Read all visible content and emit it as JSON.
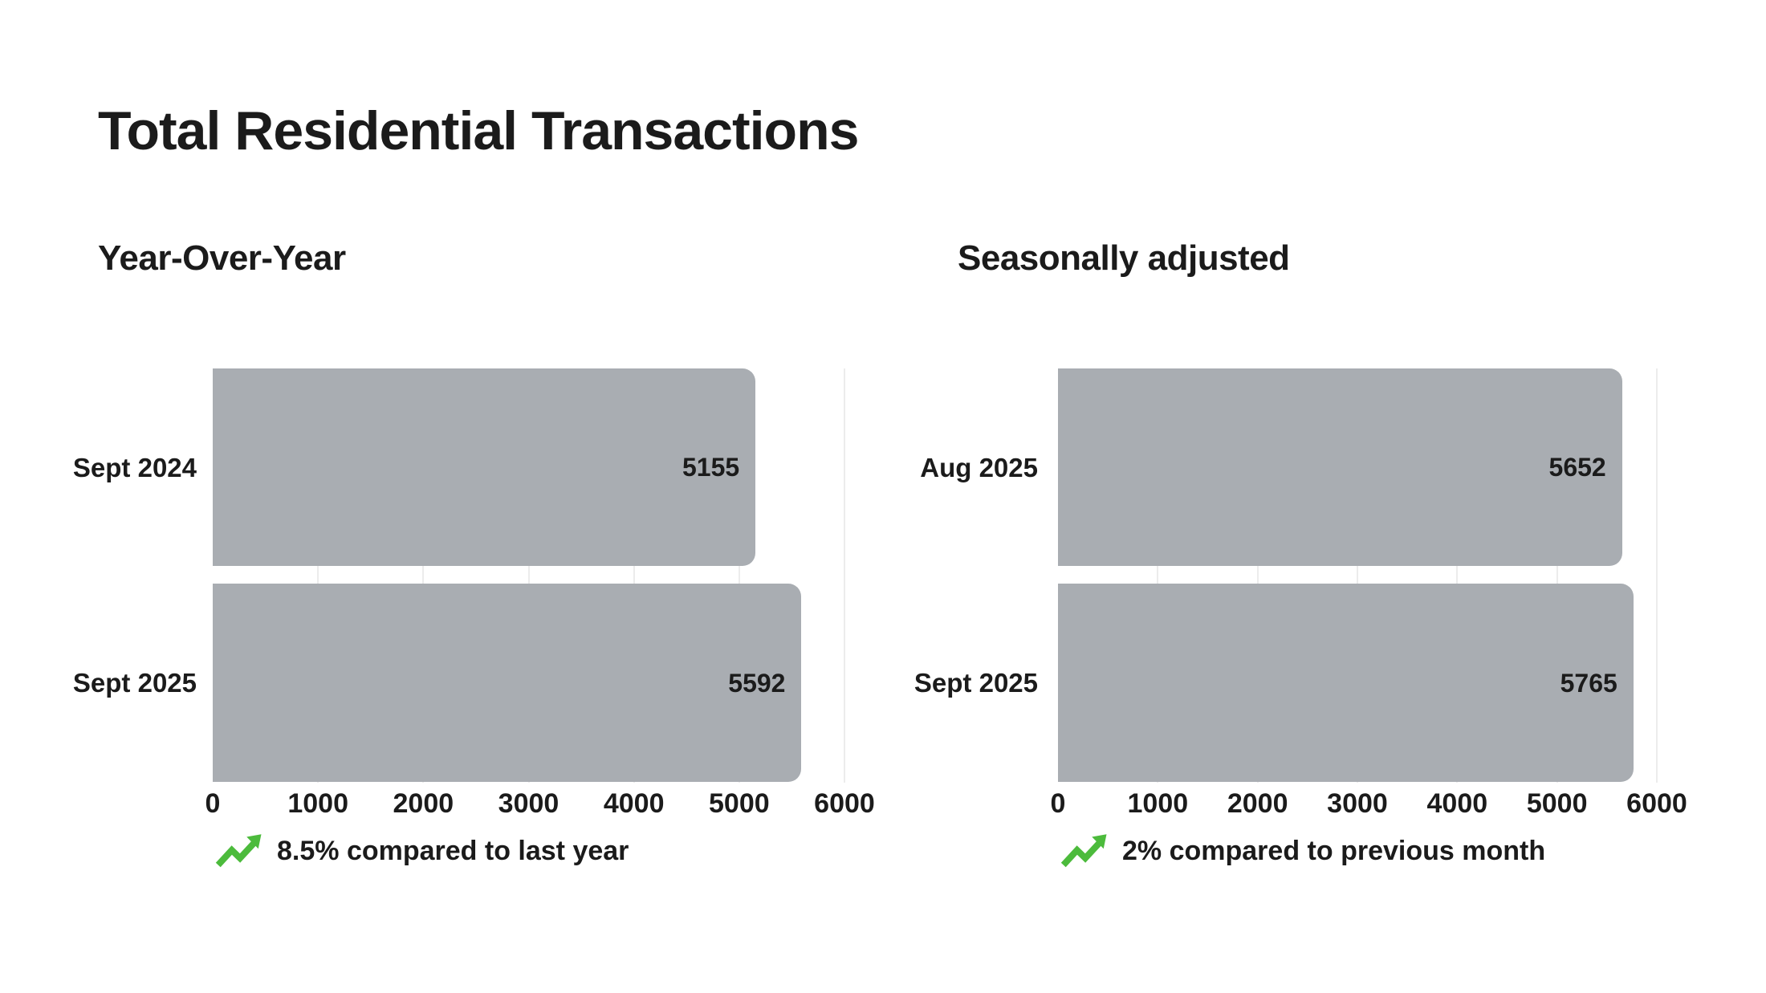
{
  "title": "Total Residential Transactions",
  "colors": {
    "bar": "#a9adb2",
    "text": "#1b1b1b",
    "grid": "#ececec",
    "green": "#4cbb3c",
    "background": "#ffffff"
  },
  "chart_data": [
    {
      "type": "bar",
      "orientation": "horizontal",
      "subtitle": "Year-Over-Year",
      "categories": [
        "Sept 2024",
        "Sept 2025"
      ],
      "values": [
        5155,
        5592
      ],
      "value_labels": [
        "5155",
        "5592"
      ],
      "xlabel": "",
      "ylabel": "",
      "xlim": [
        0,
        6000
      ],
      "xmax": 6000,
      "ticks": [
        "0",
        "1000",
        "2000",
        "3000",
        "4000",
        "5000",
        "6000"
      ],
      "grid": "vertical-light",
      "legend": "none",
      "note": {
        "icon": "trending-up-icon",
        "text": "8.5% compared to last year"
      }
    },
    {
      "type": "bar",
      "orientation": "horizontal",
      "subtitle": "Seasonally adjusted",
      "categories": [
        "Aug 2025",
        "Sept 2025"
      ],
      "values": [
        5652,
        5765
      ],
      "value_labels": [
        "5652",
        "5765"
      ],
      "xlabel": "",
      "ylabel": "",
      "xlim": [
        0,
        6000
      ],
      "xmax": 6000,
      "ticks": [
        "0",
        "1000",
        "2000",
        "3000",
        "4000",
        "5000",
        "6000"
      ],
      "grid": "vertical-light",
      "legend": "none",
      "note": {
        "icon": "trending-up-icon",
        "text": "2% compared to previous month"
      }
    }
  ]
}
